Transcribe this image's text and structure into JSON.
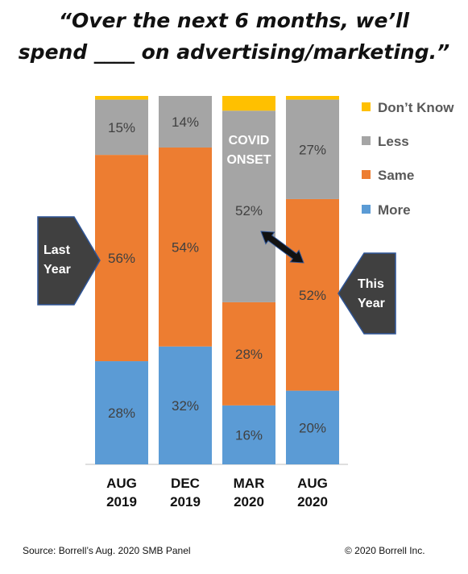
{
  "title": {
    "line1": "“Over the next 6 months, we’ll",
    "line2": "spend ____ on advertising/marketing.”"
  },
  "chart_data": {
    "type": "bar",
    "stacked": true,
    "categories": [
      [
        "AUG",
        "2019"
      ],
      [
        "DEC",
        "2019"
      ],
      [
        "MAR",
        "2020"
      ],
      [
        "AUG",
        "2020"
      ]
    ],
    "series": [
      {
        "name": "More",
        "color": "#5b9bd5",
        "values": [
          28,
          32,
          16,
          20
        ]
      },
      {
        "name": "Same",
        "color": "#ed7d31",
        "values": [
          56,
          54,
          28,
          52
        ]
      },
      {
        "name": "Less",
        "color": "#a5a5a5",
        "values": [
          15,
          14,
          52,
          27
        ]
      },
      {
        "name": "Don’t Know",
        "color": "#ffc000",
        "values": [
          1,
          0,
          4,
          1
        ]
      }
    ],
    "data_labels": [
      {
        "category": 0,
        "series": 0,
        "text": "28%"
      },
      {
        "category": 0,
        "series": 1,
        "text": "56%"
      },
      {
        "category": 0,
        "series": 2,
        "text": "15%"
      },
      {
        "category": 1,
        "series": 0,
        "text": "32%"
      },
      {
        "category": 1,
        "series": 1,
        "text": "54%"
      },
      {
        "category": 1,
        "series": 2,
        "text": "14%"
      },
      {
        "category": 2,
        "series": 0,
        "text": "16%"
      },
      {
        "category": 2,
        "series": 1,
        "text": "28%"
      },
      {
        "category": 2,
        "series": 2,
        "text": "52%"
      },
      {
        "category": 3,
        "series": 0,
        "text": "20%"
      },
      {
        "category": 3,
        "series": 1,
        "text": "52%"
      },
      {
        "category": 3,
        "series": 2,
        "text": "27%"
      }
    ],
    "ylim": [
      0,
      100
    ],
    "legend_order": [
      "Don’t Know",
      "Less",
      "Same",
      "More"
    ],
    "legend_position": "right",
    "annotations": {
      "covid": [
        "COVID",
        "ONSET"
      ],
      "last_year": [
        "Last",
        "Year"
      ],
      "this_year": [
        "This",
        "Year"
      ]
    },
    "colors": {
      "callout": "#404040",
      "callout_border": "#2f5597",
      "label_text": "#404040"
    }
  },
  "footer": {
    "source": "Source: Borrell’s Aug. 2020 SMB Panel",
    "copyright": "© 2020 Borrell Inc."
  }
}
